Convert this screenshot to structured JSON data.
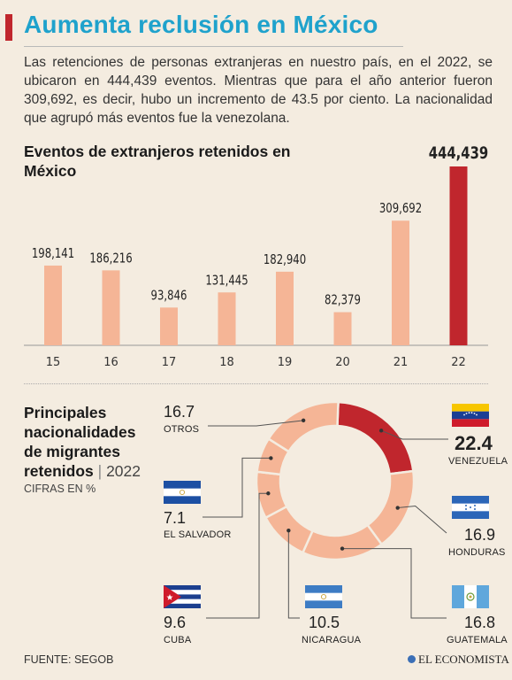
{
  "header": {
    "title": "Aumenta reclusión en México",
    "intro": "Las retenciones de personas extranjeras en nuestro país, en el 2022, se ubicaron en 444,439 eventos. Mientras que para el año anterior fueron 309,692, es decir, hubo un incremento de 43.5 por ciento. La nacionalidad que agrupó más eventos fue la venezolana."
  },
  "bar_section": {
    "title": "Eventos de extranjeros retenidos en México"
  },
  "donut_section": {
    "title": "Principales nacionalidades de migrantes retenidos",
    "year": "2022",
    "units": "CIFRAS EN %"
  },
  "footer": {
    "source": "FUENTE: SEGOB",
    "brand": "EL ECONOMISTA"
  },
  "colors": {
    "bar": "#f5b596",
    "highlight": "#c0262d",
    "title": "#1fa2cc",
    "slice": "#f5b596"
  },
  "chart_data": [
    {
      "type": "bar",
      "title": "Eventos de extranjeros retenidos en México",
      "categories": [
        "15",
        "16",
        "17",
        "18",
        "19",
        "20",
        "21",
        "22"
      ],
      "values": [
        198141,
        186216,
        93846,
        131445,
        182940,
        82379,
        309692,
        444439
      ],
      "value_labels": [
        "198,141",
        "186,216",
        "93,846",
        "131,445",
        "182,940",
        "82,379",
        "309,692",
        "444,439"
      ],
      "highlight_index": 7,
      "ylim": [
        0,
        444439
      ],
      "grid": false
    },
    {
      "type": "pie",
      "title": "Principales nacionalidades de migrantes retenidos",
      "subtitle": "2022",
      "units": "CIFRAS EN %",
      "slices": [
        {
          "label": "VENEZUELA",
          "value": 22.4,
          "value_label": "22.4",
          "color": "#c0262d",
          "flag": "venezuela-flag"
        },
        {
          "label": "HONDURAS",
          "value": 16.9,
          "value_label": "16.9",
          "color": "#f5b596",
          "flag": "honduras-flag"
        },
        {
          "label": "GUATEMALA",
          "value": 16.8,
          "value_label": "16.8",
          "color": "#f5b596",
          "flag": "guatemala-flag"
        },
        {
          "label": "NICARAGUA",
          "value": 10.5,
          "value_label": "10.5",
          "color": "#f5b596",
          "flag": "nicaragua-flag"
        },
        {
          "label": "CUBA",
          "value": 9.6,
          "value_label": "9.6",
          "color": "#f5b596",
          "flag": "cuba-flag"
        },
        {
          "label": "EL SALVADOR",
          "value": 7.1,
          "value_label": "7.1",
          "color": "#f5b596",
          "flag": "el-salvador-flag"
        },
        {
          "label": "OTROS",
          "value": 16.7,
          "value_label": "16.7",
          "color": "#f5b596",
          "flag": ""
        }
      ]
    }
  ]
}
